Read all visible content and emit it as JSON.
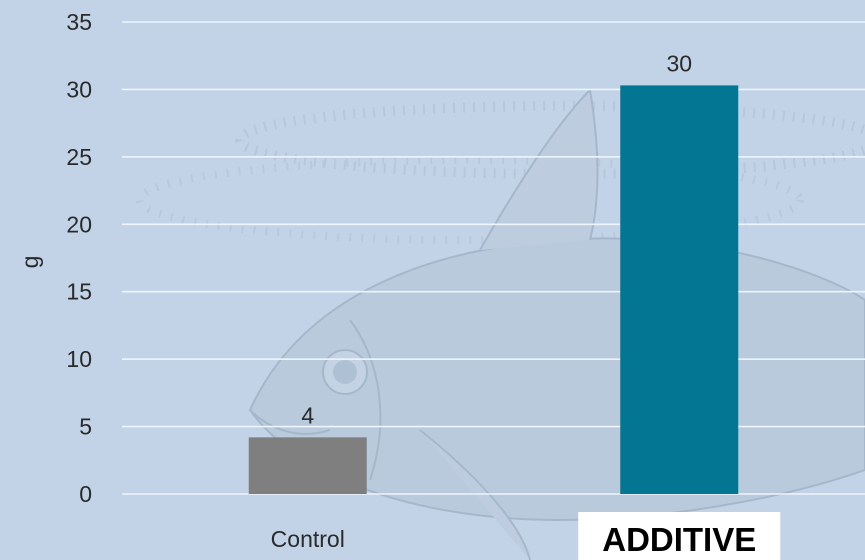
{
  "chart_data": {
    "type": "bar",
    "categories": [
      "Control",
      "ADDITIVE"
    ],
    "values": [
      4.2,
      30.3
    ],
    "data_labels": [
      "4",
      "30"
    ],
    "xlabel": "",
    "ylabel": "g",
    "ylim": [
      0,
      35
    ],
    "yticks": [
      0,
      5,
      10,
      15,
      20,
      25,
      30,
      35
    ],
    "grid": true,
    "legend": "none",
    "highlighted_category": "ADDITIVE",
    "colors": {
      "background": "#c2d3e7",
      "bars": [
        "#7f7f7f",
        "#027693"
      ],
      "gridlines": "#eef4fb",
      "highlight_box": "#ffffff",
      "fish_watermark": "#8fa3b5"
    },
    "background_illustration": "fish-watermark"
  }
}
